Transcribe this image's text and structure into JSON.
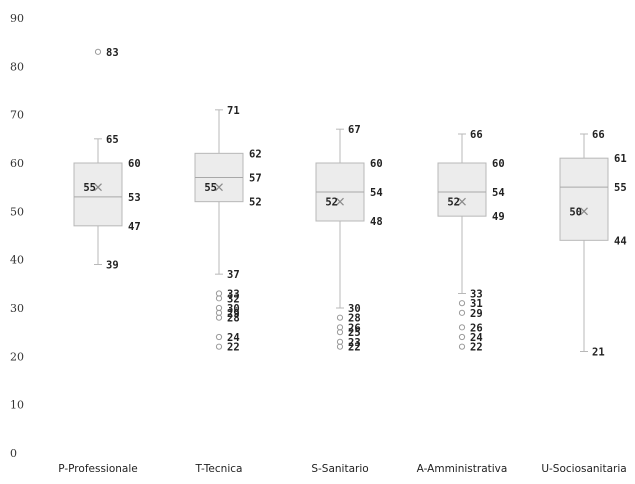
{
  "chart_data": {
    "type": "box",
    "ylim": [
      0,
      90
    ],
    "yticks": [
      "0",
      "10",
      "20",
      "30",
      "40",
      "50",
      "60",
      "70",
      "80",
      "90"
    ],
    "grid": false,
    "series": [
      {
        "category": "P-Professionale",
        "whisker_low": 39,
        "q1": 47,
        "median": 53,
        "q3": 60,
        "whisker_high": 65,
        "mean": 55,
        "outliers": [
          83
        ],
        "labels": [
          {
            "value": 83,
            "text": "83"
          },
          {
            "value": 65,
            "text": "65"
          },
          {
            "value": 60,
            "text": "60"
          },
          {
            "value": 55,
            "text": "55",
            "side": "left"
          },
          {
            "value": 53,
            "text": "53"
          },
          {
            "value": 47,
            "text": "47"
          },
          {
            "value": 39,
            "text": "39"
          }
        ]
      },
      {
        "category": "T-Tecnica",
        "whisker_low": 37,
        "q1": 52,
        "median": 57,
        "q3": 62,
        "whisker_high": 71,
        "mean": 55,
        "outliers": [
          33,
          32,
          30,
          29,
          28,
          24,
          22
        ],
        "labels": [
          {
            "value": 71,
            "text": "71"
          },
          {
            "value": 62,
            "text": "62"
          },
          {
            "value": 57,
            "text": "57"
          },
          {
            "value": 55,
            "text": "55",
            "side": "left"
          },
          {
            "value": 52,
            "text": "52"
          },
          {
            "value": 37,
            "text": "37"
          },
          {
            "value": 33,
            "text": "33"
          },
          {
            "value": 32,
            "text": "32"
          },
          {
            "value": 30,
            "text": "30"
          },
          {
            "value": 29,
            "text": "29"
          },
          {
            "value": 28,
            "text": "28"
          },
          {
            "value": 24,
            "text": "24"
          },
          {
            "value": 22,
            "text": "22"
          }
        ]
      },
      {
        "category": "S-Sanitario",
        "whisker_low": 30,
        "q1": 48,
        "median": 54,
        "q3": 60,
        "whisker_high": 67,
        "mean": 52,
        "outliers": [
          28,
          26,
          25,
          23,
          22
        ],
        "labels": [
          {
            "value": 67,
            "text": "67"
          },
          {
            "value": 60,
            "text": "60"
          },
          {
            "value": 54,
            "text": "54"
          },
          {
            "value": 52,
            "text": "52",
            "side": "left"
          },
          {
            "value": 48,
            "text": "48"
          },
          {
            "value": 30,
            "text": "30"
          },
          {
            "value": 28,
            "text": "28"
          },
          {
            "value": 26,
            "text": "26"
          },
          {
            "value": 25,
            "text": "25"
          },
          {
            "value": 23,
            "text": "23"
          },
          {
            "value": 22,
            "text": "22"
          }
        ]
      },
      {
        "category": "A-Amministrativa",
        "whisker_low": 33,
        "q1": 49,
        "median": 54,
        "q3": 60,
        "whisker_high": 66,
        "mean": 52,
        "outliers": [
          31,
          29,
          26,
          24,
          22
        ],
        "labels": [
          {
            "value": 66,
            "text": "66"
          },
          {
            "value": 60,
            "text": "60"
          },
          {
            "value": 54,
            "text": "54"
          },
          {
            "value": 52,
            "text": "52",
            "side": "left"
          },
          {
            "value": 49,
            "text": "49"
          },
          {
            "value": 33,
            "text": "33"
          },
          {
            "value": 31,
            "text": "31"
          },
          {
            "value": 29,
            "text": "29"
          },
          {
            "value": 26,
            "text": "26"
          },
          {
            "value": 24,
            "text": "24"
          },
          {
            "value": 22,
            "text": "22"
          }
        ]
      },
      {
        "category": "U-Sociosanitaria",
        "whisker_low": 21,
        "q1": 44,
        "median": 55,
        "q3": 61,
        "whisker_high": 66,
        "mean": 50,
        "outliers": [],
        "labels": [
          {
            "value": 66,
            "text": "66"
          },
          {
            "value": 61,
            "text": "61"
          },
          {
            "value": 55,
            "text": "55"
          },
          {
            "value": 50,
            "text": "50",
            "side": "left"
          },
          {
            "value": 44,
            "text": "44"
          },
          {
            "value": 21,
            "text": "21"
          }
        ]
      }
    ]
  }
}
